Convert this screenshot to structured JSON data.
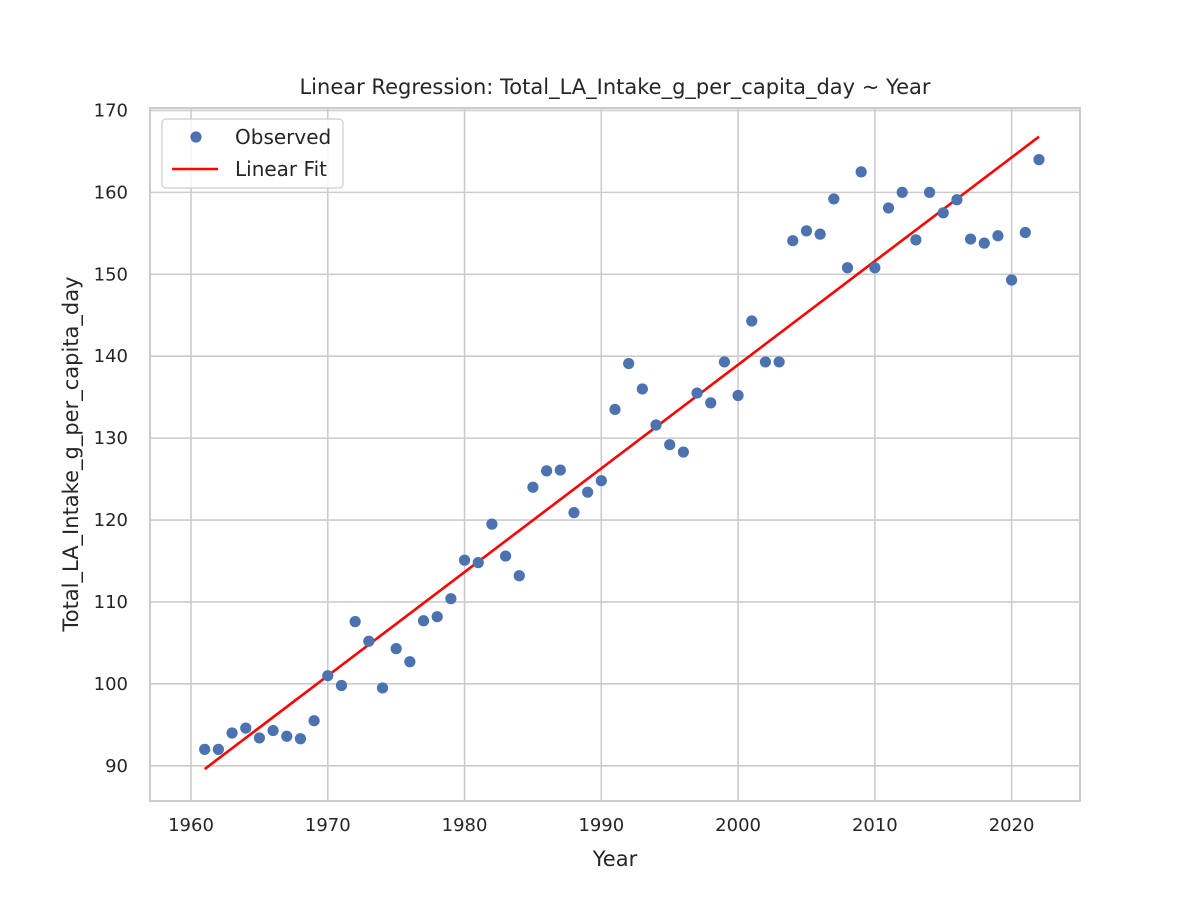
{
  "chart_data": {
    "type": "scatter",
    "title": "Linear Regression: Total_LA_Intake_g_per_capita_day ~ Year",
    "xlabel": "Year",
    "ylabel": "Total_LA_Intake_g_per_capita_day",
    "xlim": [
      1957,
      2025
    ],
    "ylim": [
      85.7,
      170.3
    ],
    "xticks": [
      1960,
      1970,
      1980,
      1990,
      2000,
      2010,
      2020
    ],
    "yticks": [
      90,
      100,
      110,
      120,
      130,
      140,
      150,
      160,
      170
    ],
    "grid": true,
    "legend_position": "top-left",
    "colors": {
      "observed": "#4c72b0",
      "fit": "#ff0000",
      "grid": "#cccccc",
      "text": "#262626"
    },
    "series": [
      {
        "name": "Observed",
        "kind": "scatter",
        "x": [
          1961,
          1962,
          1963,
          1964,
          1965,
          1966,
          1967,
          1968,
          1969,
          1970,
          1971,
          1972,
          1973,
          1974,
          1975,
          1976,
          1977,
          1978,
          1979,
          1980,
          1981,
          1982,
          1983,
          1984,
          1985,
          1986,
          1987,
          1988,
          1989,
          1990,
          1991,
          1992,
          1993,
          1994,
          1995,
          1996,
          1997,
          1998,
          1999,
          2000,
          2001,
          2002,
          2003,
          2004,
          2005,
          2006,
          2007,
          2008,
          2009,
          2010,
          2011,
          2012,
          2013,
          2014,
          2015,
          2016,
          2017,
          2018,
          2019,
          2020,
          2021,
          2022
        ],
        "y": [
          92.0,
          92.0,
          94.0,
          94.6,
          93.4,
          94.3,
          93.6,
          93.3,
          95.5,
          101.0,
          99.8,
          107.6,
          105.2,
          99.5,
          104.3,
          102.7,
          107.7,
          108.2,
          110.4,
          115.1,
          114.8,
          119.5,
          115.6,
          113.2,
          124.0,
          126.0,
          126.1,
          120.9,
          123.4,
          124.8,
          133.5,
          139.1,
          136.0,
          131.6,
          129.2,
          128.3,
          135.5,
          134.3,
          139.3,
          135.2,
          144.3,
          139.3,
          139.3,
          154.1,
          155.3,
          154.9,
          159.2,
          150.8,
          162.5,
          150.8,
          158.1,
          160.0,
          154.2,
          160.0,
          157.5,
          159.1,
          154.3,
          153.8,
          154.7,
          149.3,
          155.1,
          164.0
        ]
      },
      {
        "name": "Linear Fit",
        "kind": "line",
        "x": [
          1961,
          2022
        ],
        "y": [
          89.6,
          166.8
        ]
      }
    ]
  }
}
